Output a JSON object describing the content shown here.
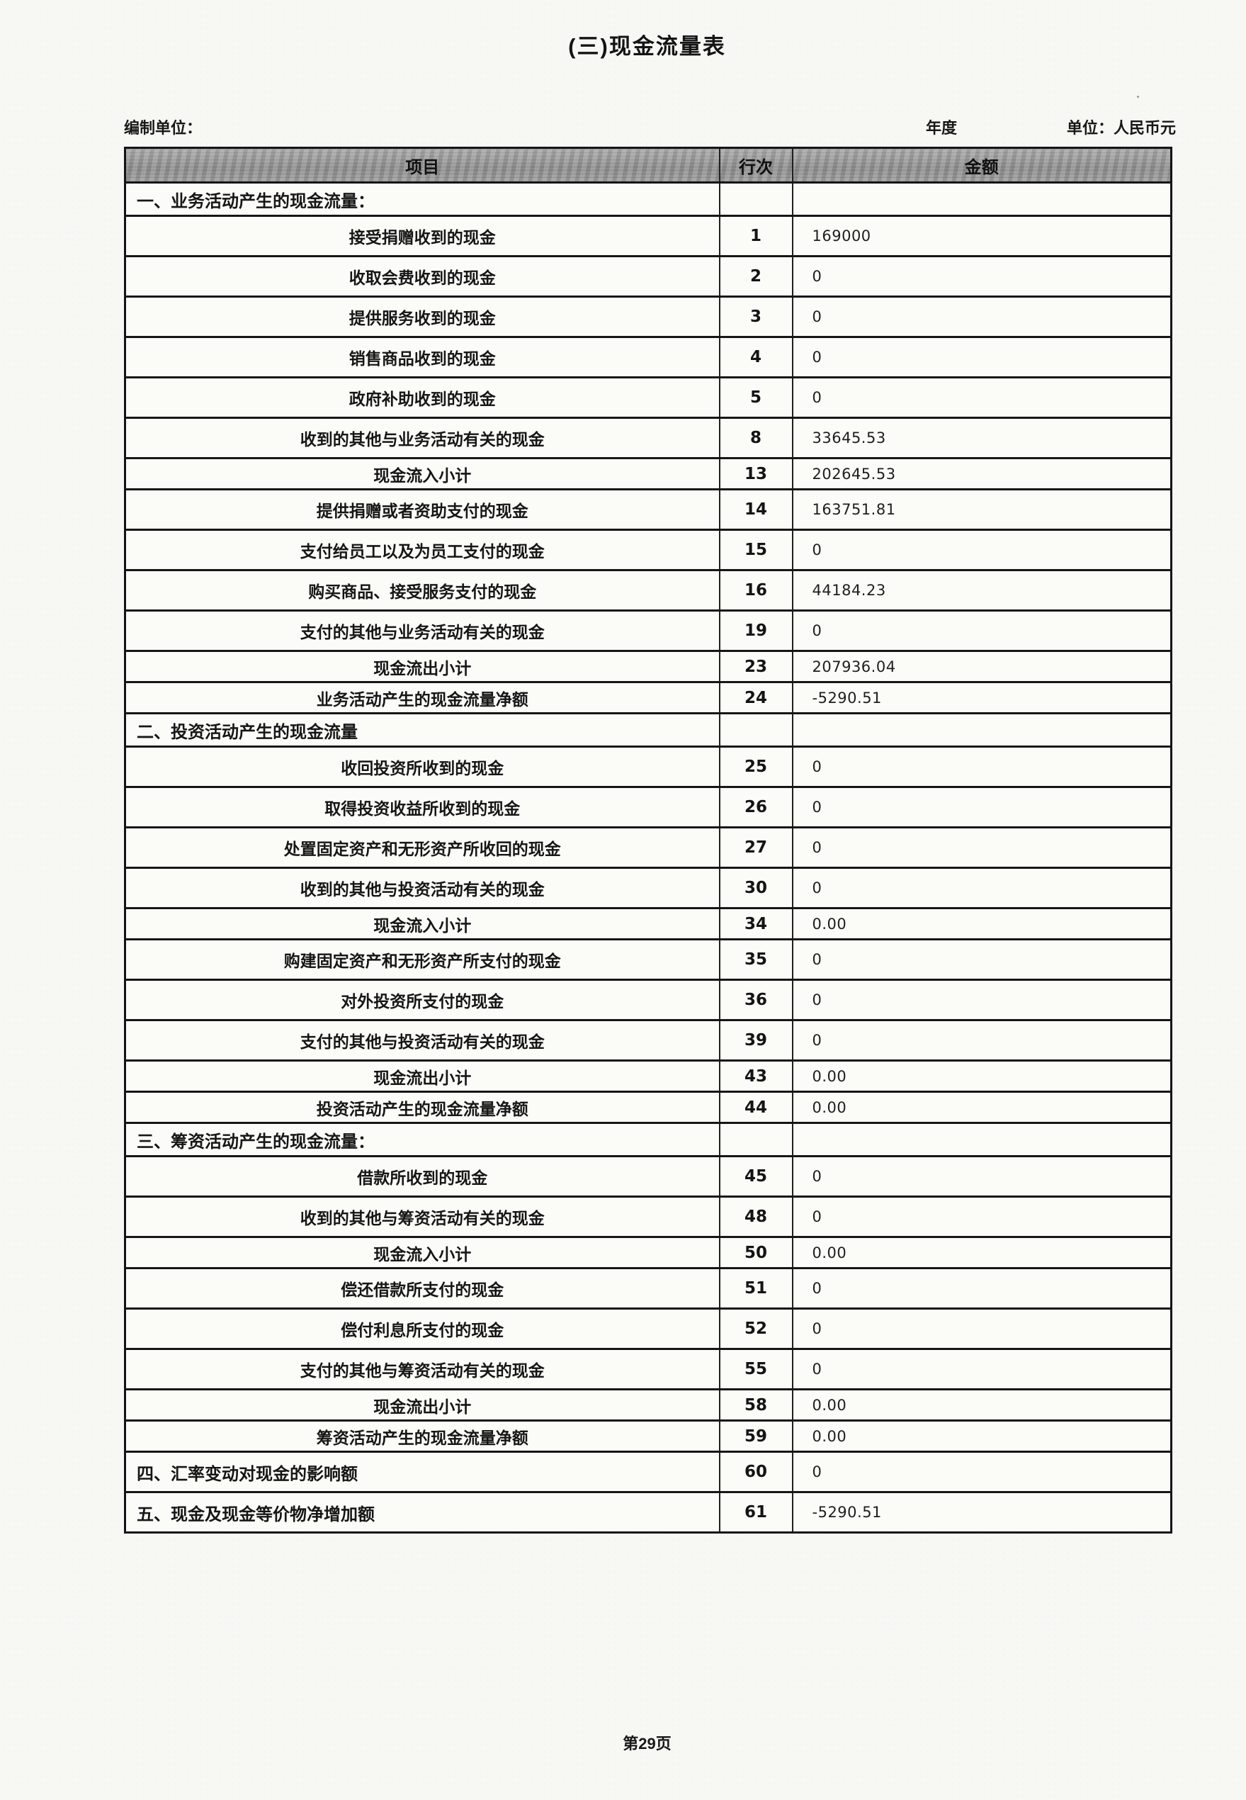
{
  "document": {
    "title": "(三)现金流量表",
    "meta": {
      "prepared_by_label": "编制单位：",
      "year_label": "年度",
      "unit_label": "单位：人民币元"
    },
    "footer": {
      "page_number": "第29页"
    }
  },
  "table": {
    "columns": {
      "item": "项目",
      "line_no": "行次",
      "amount": "金额"
    },
    "rows": [
      {
        "type": "section",
        "item": "一、业务活动产生的现金流量：",
        "line_no": "",
        "amount": ""
      },
      {
        "type": "data",
        "item": "接受捐赠收到的现金",
        "line_no": "1",
        "amount": "169000"
      },
      {
        "type": "data",
        "item": "收取会费收到的现金",
        "line_no": "2",
        "amount": "0"
      },
      {
        "type": "data",
        "item": "提供服务收到的现金",
        "line_no": "3",
        "amount": "0"
      },
      {
        "type": "data",
        "item": "销售商品收到的现金",
        "line_no": "4",
        "amount": "0"
      },
      {
        "type": "data",
        "item": "政府补助收到的现金",
        "line_no": "5",
        "amount": "0"
      },
      {
        "type": "data",
        "item": "收到的其他与业务活动有关的现金",
        "line_no": "8",
        "amount": "33645.53"
      },
      {
        "type": "subtotal",
        "item": "现金流入小计",
        "line_no": "13",
        "amount": "202645.53"
      },
      {
        "type": "data",
        "item": "提供捐赠或者资助支付的现金",
        "line_no": "14",
        "amount": "163751.81"
      },
      {
        "type": "data",
        "item": "支付给员工以及为员工支付的现金",
        "line_no": "15",
        "amount": "0"
      },
      {
        "type": "data",
        "item": "购买商品、接受服务支付的现金",
        "line_no": "16",
        "amount": "44184.23"
      },
      {
        "type": "data",
        "item": "支付的其他与业务活动有关的现金",
        "line_no": "19",
        "amount": "0"
      },
      {
        "type": "subtotal",
        "item": "现金流出小计",
        "line_no": "23",
        "amount": "207936.04"
      },
      {
        "type": "subtotal",
        "item": "业务活动产生的现金流量净额",
        "line_no": "24",
        "amount": "-5290.51"
      },
      {
        "type": "section",
        "item": "二、投资活动产生的现金流量",
        "line_no": "",
        "amount": ""
      },
      {
        "type": "data",
        "item": "收回投资所收到的现金",
        "line_no": "25",
        "amount": "0"
      },
      {
        "type": "data",
        "item": "取得投资收益所收到的现金",
        "line_no": "26",
        "amount": "0"
      },
      {
        "type": "data",
        "item": "处置固定资产和无形资产所收回的现金",
        "line_no": "27",
        "amount": "0"
      },
      {
        "type": "data",
        "item": "收到的其他与投资活动有关的现金",
        "line_no": "30",
        "amount": "0"
      },
      {
        "type": "subtotal",
        "item": "现金流入小计",
        "line_no": "34",
        "amount": "0.00"
      },
      {
        "type": "data",
        "item": "购建固定资产和无形资产所支付的现金",
        "line_no": "35",
        "amount": "0"
      },
      {
        "type": "data",
        "item": "对外投资所支付的现金",
        "line_no": "36",
        "amount": "0"
      },
      {
        "type": "data",
        "item": "支付的其他与投资活动有关的现金",
        "line_no": "39",
        "amount": "0"
      },
      {
        "type": "subtotal",
        "item": "现金流出小计",
        "line_no": "43",
        "amount": "0.00"
      },
      {
        "type": "subtotal",
        "item": "投资活动产生的现金流量净额",
        "line_no": "44",
        "amount": "0.00"
      },
      {
        "type": "section",
        "item": "三、筹资活动产生的现金流量：",
        "line_no": "",
        "amount": ""
      },
      {
        "type": "data",
        "item": "借款所收到的现金",
        "line_no": "45",
        "amount": "0"
      },
      {
        "type": "data",
        "item": "收到的其他与筹资活动有关的现金",
        "line_no": "48",
        "amount": "0"
      },
      {
        "type": "subtotal",
        "item": "现金流入小计",
        "line_no": "50",
        "amount": "0.00"
      },
      {
        "type": "data",
        "item": "偿还借款所支付的现金",
        "line_no": "51",
        "amount": "0"
      },
      {
        "type": "data",
        "item": "偿付利息所支付的现金",
        "line_no": "52",
        "amount": "0"
      },
      {
        "type": "data",
        "item": "支付的其他与筹资活动有关的现金",
        "line_no": "55",
        "amount": "0"
      },
      {
        "type": "subtotal",
        "item": "现金流出小计",
        "line_no": "58",
        "amount": "0.00"
      },
      {
        "type": "subtotal",
        "item": "筹资活动产生的现金流量净额",
        "line_no": "59",
        "amount": "0.00"
      },
      {
        "type": "section-data",
        "item": "四、汇率变动对现金的影响额",
        "line_no": "60",
        "amount": "0"
      },
      {
        "type": "section-data",
        "item": "五、现金及现金等价物净增加额",
        "line_no": "61",
        "amount": "-5290.51"
      }
    ]
  }
}
